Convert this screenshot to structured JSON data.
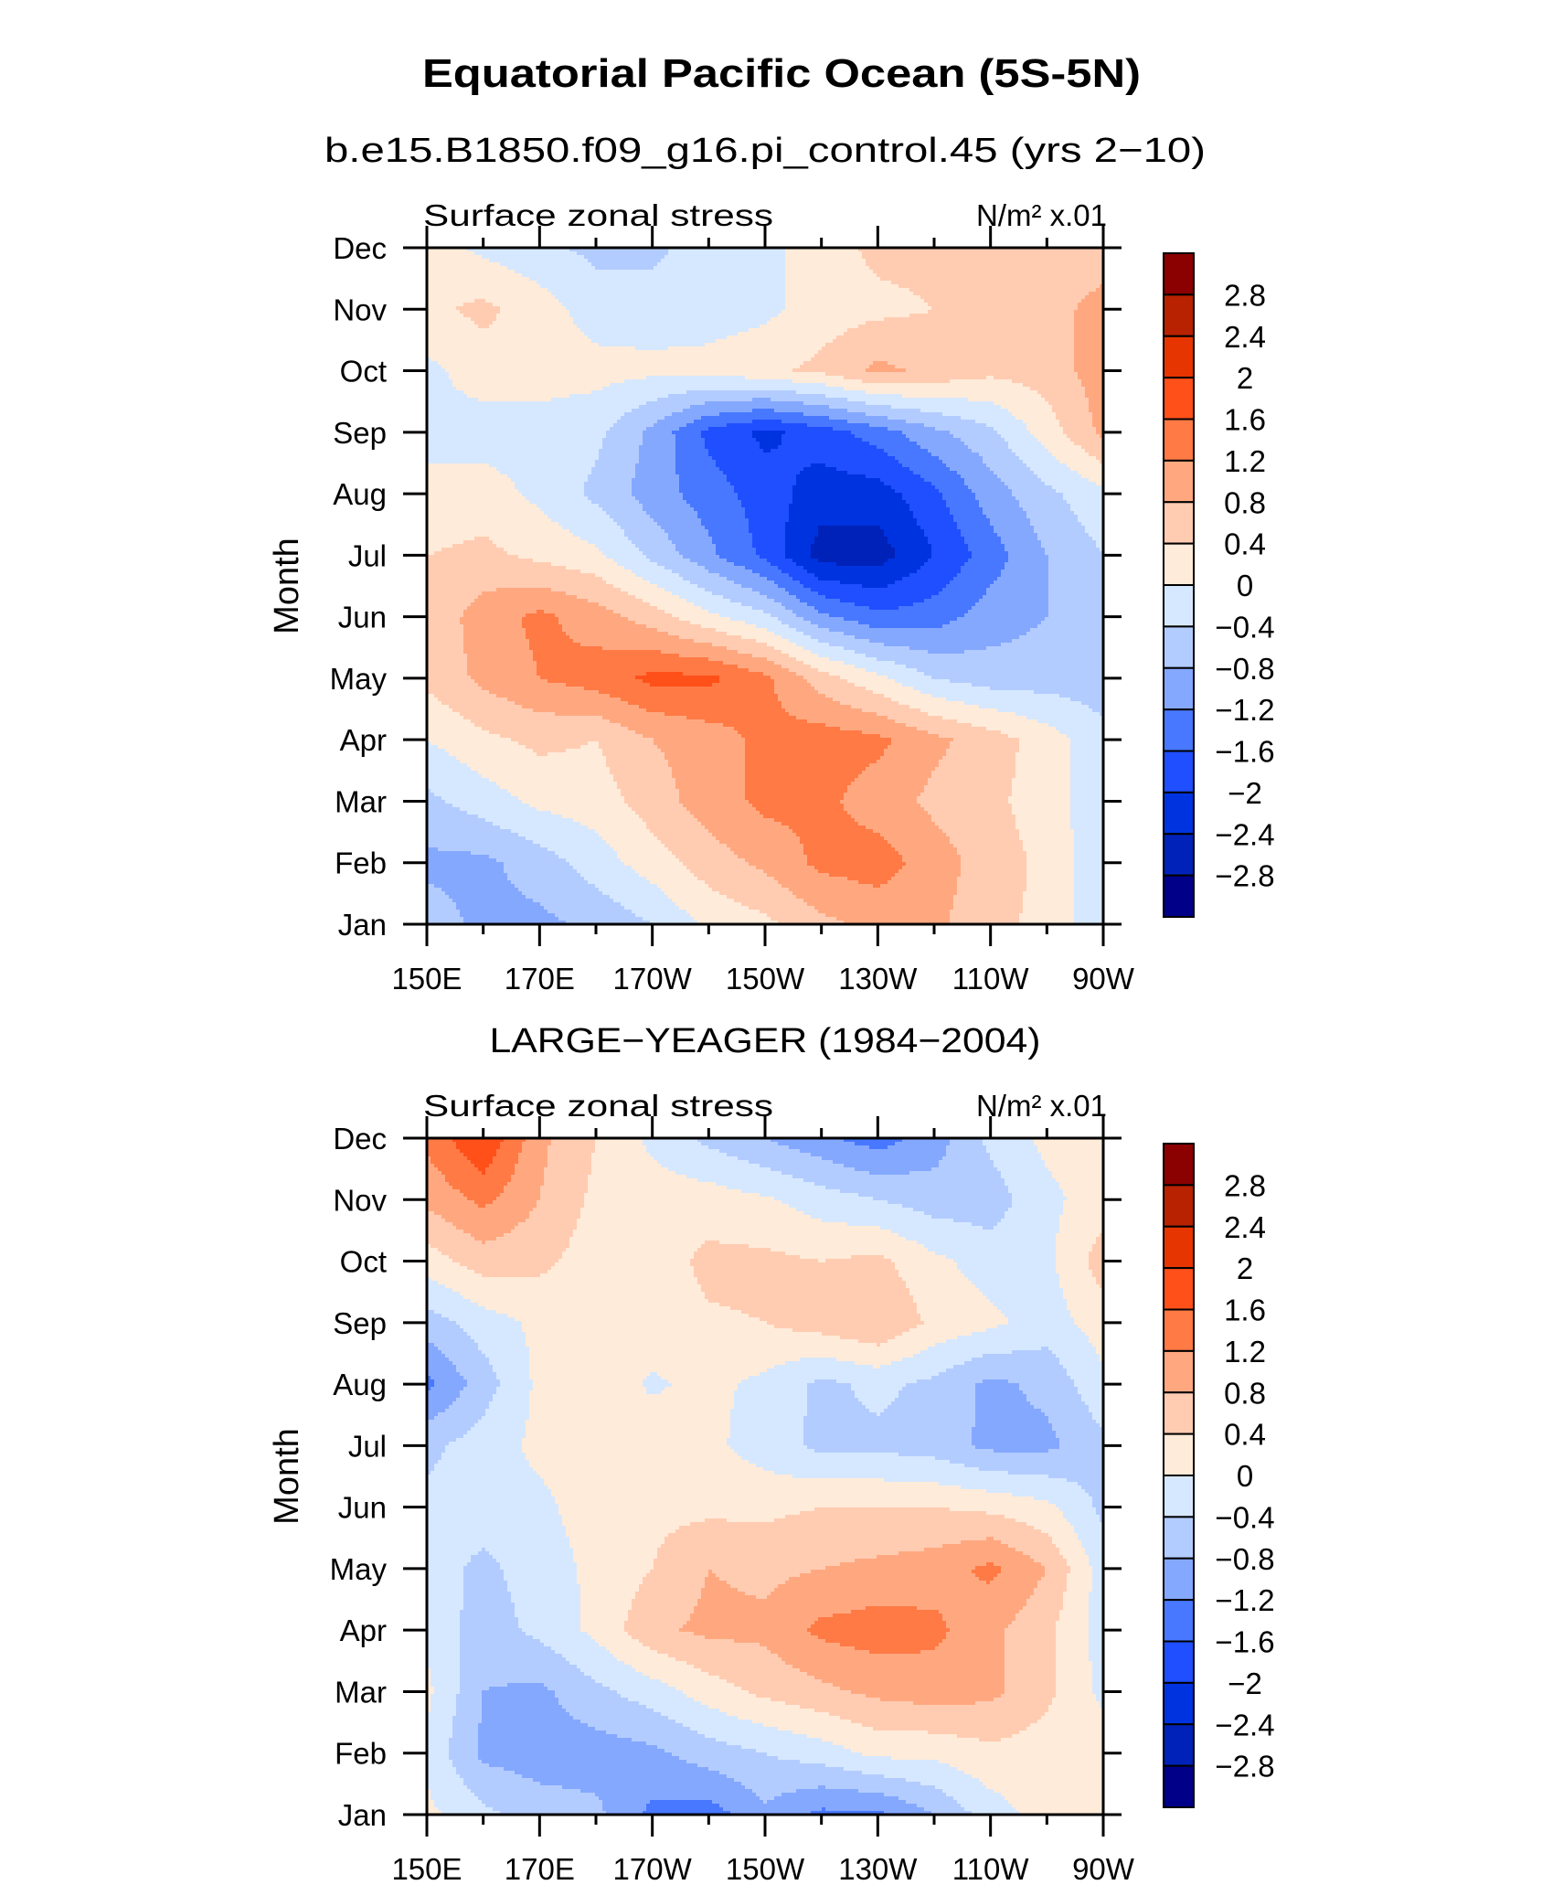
{
  "title": "Equatorial Pacific Ocean (5S-5N)",
  "chart_data": [
    {
      "type": "heatmap",
      "subtitle": "b.e15.B1850.f09_g16.pi_control.45 (yrs 2−10)",
      "left_label": "Surface zonal stress",
      "units": "N/m² x.01",
      "ylabel": "Month",
      "x_tick_labels": [
        "150E",
        "170E",
        "170W",
        "150W",
        "130W",
        "110W",
        "90W"
      ],
      "x_tick_values": [
        150,
        170,
        190,
        210,
        230,
        250,
        270
      ],
      "xlim": [
        150,
        270
      ],
      "months": [
        "Jan",
        "Feb",
        "Mar",
        "Apr",
        "May",
        "Jun",
        "Jul",
        "Aug",
        "Sep",
        "Oct",
        "Nov",
        "Dec"
      ],
      "lon": [
        150,
        160,
        170,
        180,
        190,
        200,
        210,
        220,
        230,
        240,
        250,
        260,
        270
      ],
      "values": [
        [
          -0.6,
          -0.9,
          -0.9,
          -0.7,
          -0.4,
          0.1,
          0.3,
          0.7,
          0.9,
          0.9,
          0.5,
          0.3,
          -0.3
        ],
        [
          -0.9,
          -0.9,
          -0.6,
          -0.2,
          0.2,
          0.6,
          0.9,
          1.3,
          1.4,
          1.0,
          0.6,
          0.3,
          -0.3
        ],
        [
          -0.5,
          -0.2,
          0.1,
          0.2,
          0.6,
          1.0,
          1.3,
          1.3,
          1.0,
          0.7,
          0.5,
          0.2,
          -0.3
        ],
        [
          0.0,
          0.3,
          0.5,
          0.4,
          0.8,
          1.0,
          1.3,
          1.4,
          1.3,
          0.9,
          0.6,
          0.2,
          -0.3
        ],
        [
          0.5,
          0.9,
          1.2,
          1.4,
          1.7,
          1.7,
          1.3,
          0.6,
          0.1,
          -0.4,
          -0.6,
          -0.6,
          -0.6
        ],
        [
          0.5,
          1.0,
          1.3,
          1.0,
          0.6,
          0.1,
          -0.3,
          -1.1,
          -1.5,
          -1.4,
          -1.0,
          -0.8,
          -0.6
        ],
        [
          0.4,
          0.5,
          0.3,
          0.1,
          -0.5,
          -1.1,
          -1.7,
          -2.6,
          -2.6,
          -2.0,
          -1.4,
          -0.8,
          -0.4
        ],
        [
          0.1,
          0.2,
          -0.1,
          -0.5,
          -1.0,
          -1.4,
          -1.8,
          -2.2,
          -2.2,
          -1.7,
          -1.0,
          -0.5,
          -0.1
        ],
        [
          -0.1,
          -0.2,
          -0.2,
          -0.3,
          -0.9,
          -1.7,
          -2.1,
          -1.8,
          -1.4,
          -0.9,
          -0.5,
          0.2,
          0.9
        ],
        [
          -0.1,
          0.2,
          0.2,
          0.15,
          0.1,
          0.15,
          0.3,
          0.5,
          0.9,
          0.7,
          0.5,
          0.6,
          1.0
        ],
        [
          0.3,
          0.5,
          0.2,
          -0.2,
          -0.2,
          -0.2,
          -0.1,
          0.2,
          0.3,
          0.4,
          0.5,
          0.6,
          1.0
        ],
        [
          0.2,
          -0.1,
          -0.3,
          -0.5,
          -0.5,
          -0.2,
          -0.1,
          0.2,
          0.5,
          0.5,
          0.5,
          0.5,
          0.5
        ]
      ]
    },
    {
      "type": "heatmap",
      "subtitle": "LARGE−YEAGER (1984−2004)",
      "left_label": "Surface zonal stress",
      "units": "N/m² x.01",
      "ylabel": "Month",
      "x_tick_labels": [
        "150E",
        "170E",
        "170W",
        "150W",
        "130W",
        "110W",
        "90W"
      ],
      "x_tick_values": [
        150,
        170,
        190,
        210,
        230,
        250,
        270
      ],
      "xlim": [
        150,
        270
      ],
      "months": [
        "Jan",
        "Feb",
        "Mar",
        "Apr",
        "May",
        "Jun",
        "Jul",
        "Aug",
        "Sep",
        "Oct",
        "Nov",
        "Dec"
      ],
      "lon": [
        150,
        160,
        170,
        180,
        190,
        200,
        210,
        220,
        230,
        240,
        250,
        260,
        270
      ],
      "values": [
        [
          0.1,
          -0.3,
          -0.6,
          -0.7,
          -1.3,
          -1.4,
          -0.9,
          -1.3,
          -1.3,
          -0.8,
          -0.2,
          0.2,
          0.2
        ],
        [
          -0.1,
          -0.9,
          -1.0,
          -1.0,
          -0.9,
          -0.6,
          -0.4,
          -0.2,
          0.1,
          0.1,
          0.3,
          0.2,
          0.2
        ],
        [
          0.1,
          -0.8,
          -0.9,
          -0.5,
          -0.2,
          0.2,
          0.5,
          0.7,
          0.9,
          1.0,
          0.9,
          0.5,
          -0.1
        ],
        [
          -0.1,
          -0.6,
          -0.3,
          0.1,
          0.7,
          0.9,
          0.9,
          1.3,
          1.4,
          1.3,
          0.9,
          0.5,
          -0.2
        ],
        [
          -0.2,
          -0.5,
          -0.2,
          0.1,
          0.4,
          0.8,
          0.7,
          0.8,
          0.9,
          1.0,
          1.3,
          0.8,
          -0.2
        ],
        [
          -0.3,
          -0.2,
          -0.1,
          0.2,
          0.3,
          0.3,
          0.3,
          0.4,
          0.4,
          0.4,
          0.3,
          0.1,
          -0.5
        ],
        [
          -0.5,
          -0.2,
          0.1,
          0.2,
          0.2,
          0.1,
          -0.2,
          -0.5,
          -0.5,
          -0.6,
          -0.9,
          -0.9,
          -0.5
        ],
        [
          -1.3,
          -0.6,
          0.1,
          0.2,
          -0.05,
          0.1,
          -0.1,
          -0.5,
          -0.3,
          -0.5,
          -0.9,
          -0.7,
          -0.1
        ],
        [
          -0.6,
          -0.2,
          0.1,
          0.2,
          0.2,
          0.35,
          0.4,
          0.6,
          0.8,
          0.3,
          0.1,
          -0.2,
          0.2
        ],
        [
          0.2,
          0.6,
          0.5,
          0.2,
          0.2,
          0.5,
          0.5,
          0.4,
          0.5,
          0.1,
          -0.2,
          -0.1,
          0.6
        ],
        [
          0.9,
          1.3,
          0.8,
          0.3,
          0.2,
          0.2,
          0.05,
          -0.2,
          -0.4,
          -0.6,
          -0.6,
          -0.1,
          0.2
        ],
        [
          1.3,
          2.0,
          0.9,
          0.4,
          -0.1,
          -0.5,
          -0.8,
          -1.1,
          -1.4,
          -1.0,
          -0.3,
          0.1,
          0.2
        ]
      ]
    }
  ],
  "colorbar": {
    "labels": [
      "2.8",
      "2.4",
      "2",
      "1.6",
      "1.2",
      "0.8",
      "0.4",
      "0",
      "−0.4",
      "−0.8",
      "−1.2",
      "−1.6",
      "−2",
      "−2.4",
      "−2.8"
    ],
    "levels": [
      2.8,
      2.4,
      2.0,
      1.6,
      1.2,
      0.8,
      0.4,
      0,
      -0.4,
      -0.8,
      -1.2,
      -1.6,
      -2.0,
      -2.4,
      -2.8
    ],
    "colors": [
      "#8b0000",
      "#b82200",
      "#e63500",
      "#ff501a",
      "#ff7a45",
      "#ffa880",
      "#ffccb2",
      "#ffebd9",
      "#d6e8ff",
      "#b3ccff",
      "#85a8ff",
      "#4778ff",
      "#1f4fff",
      "#0033e0",
      "#0022b8",
      "#000088"
    ]
  }
}
